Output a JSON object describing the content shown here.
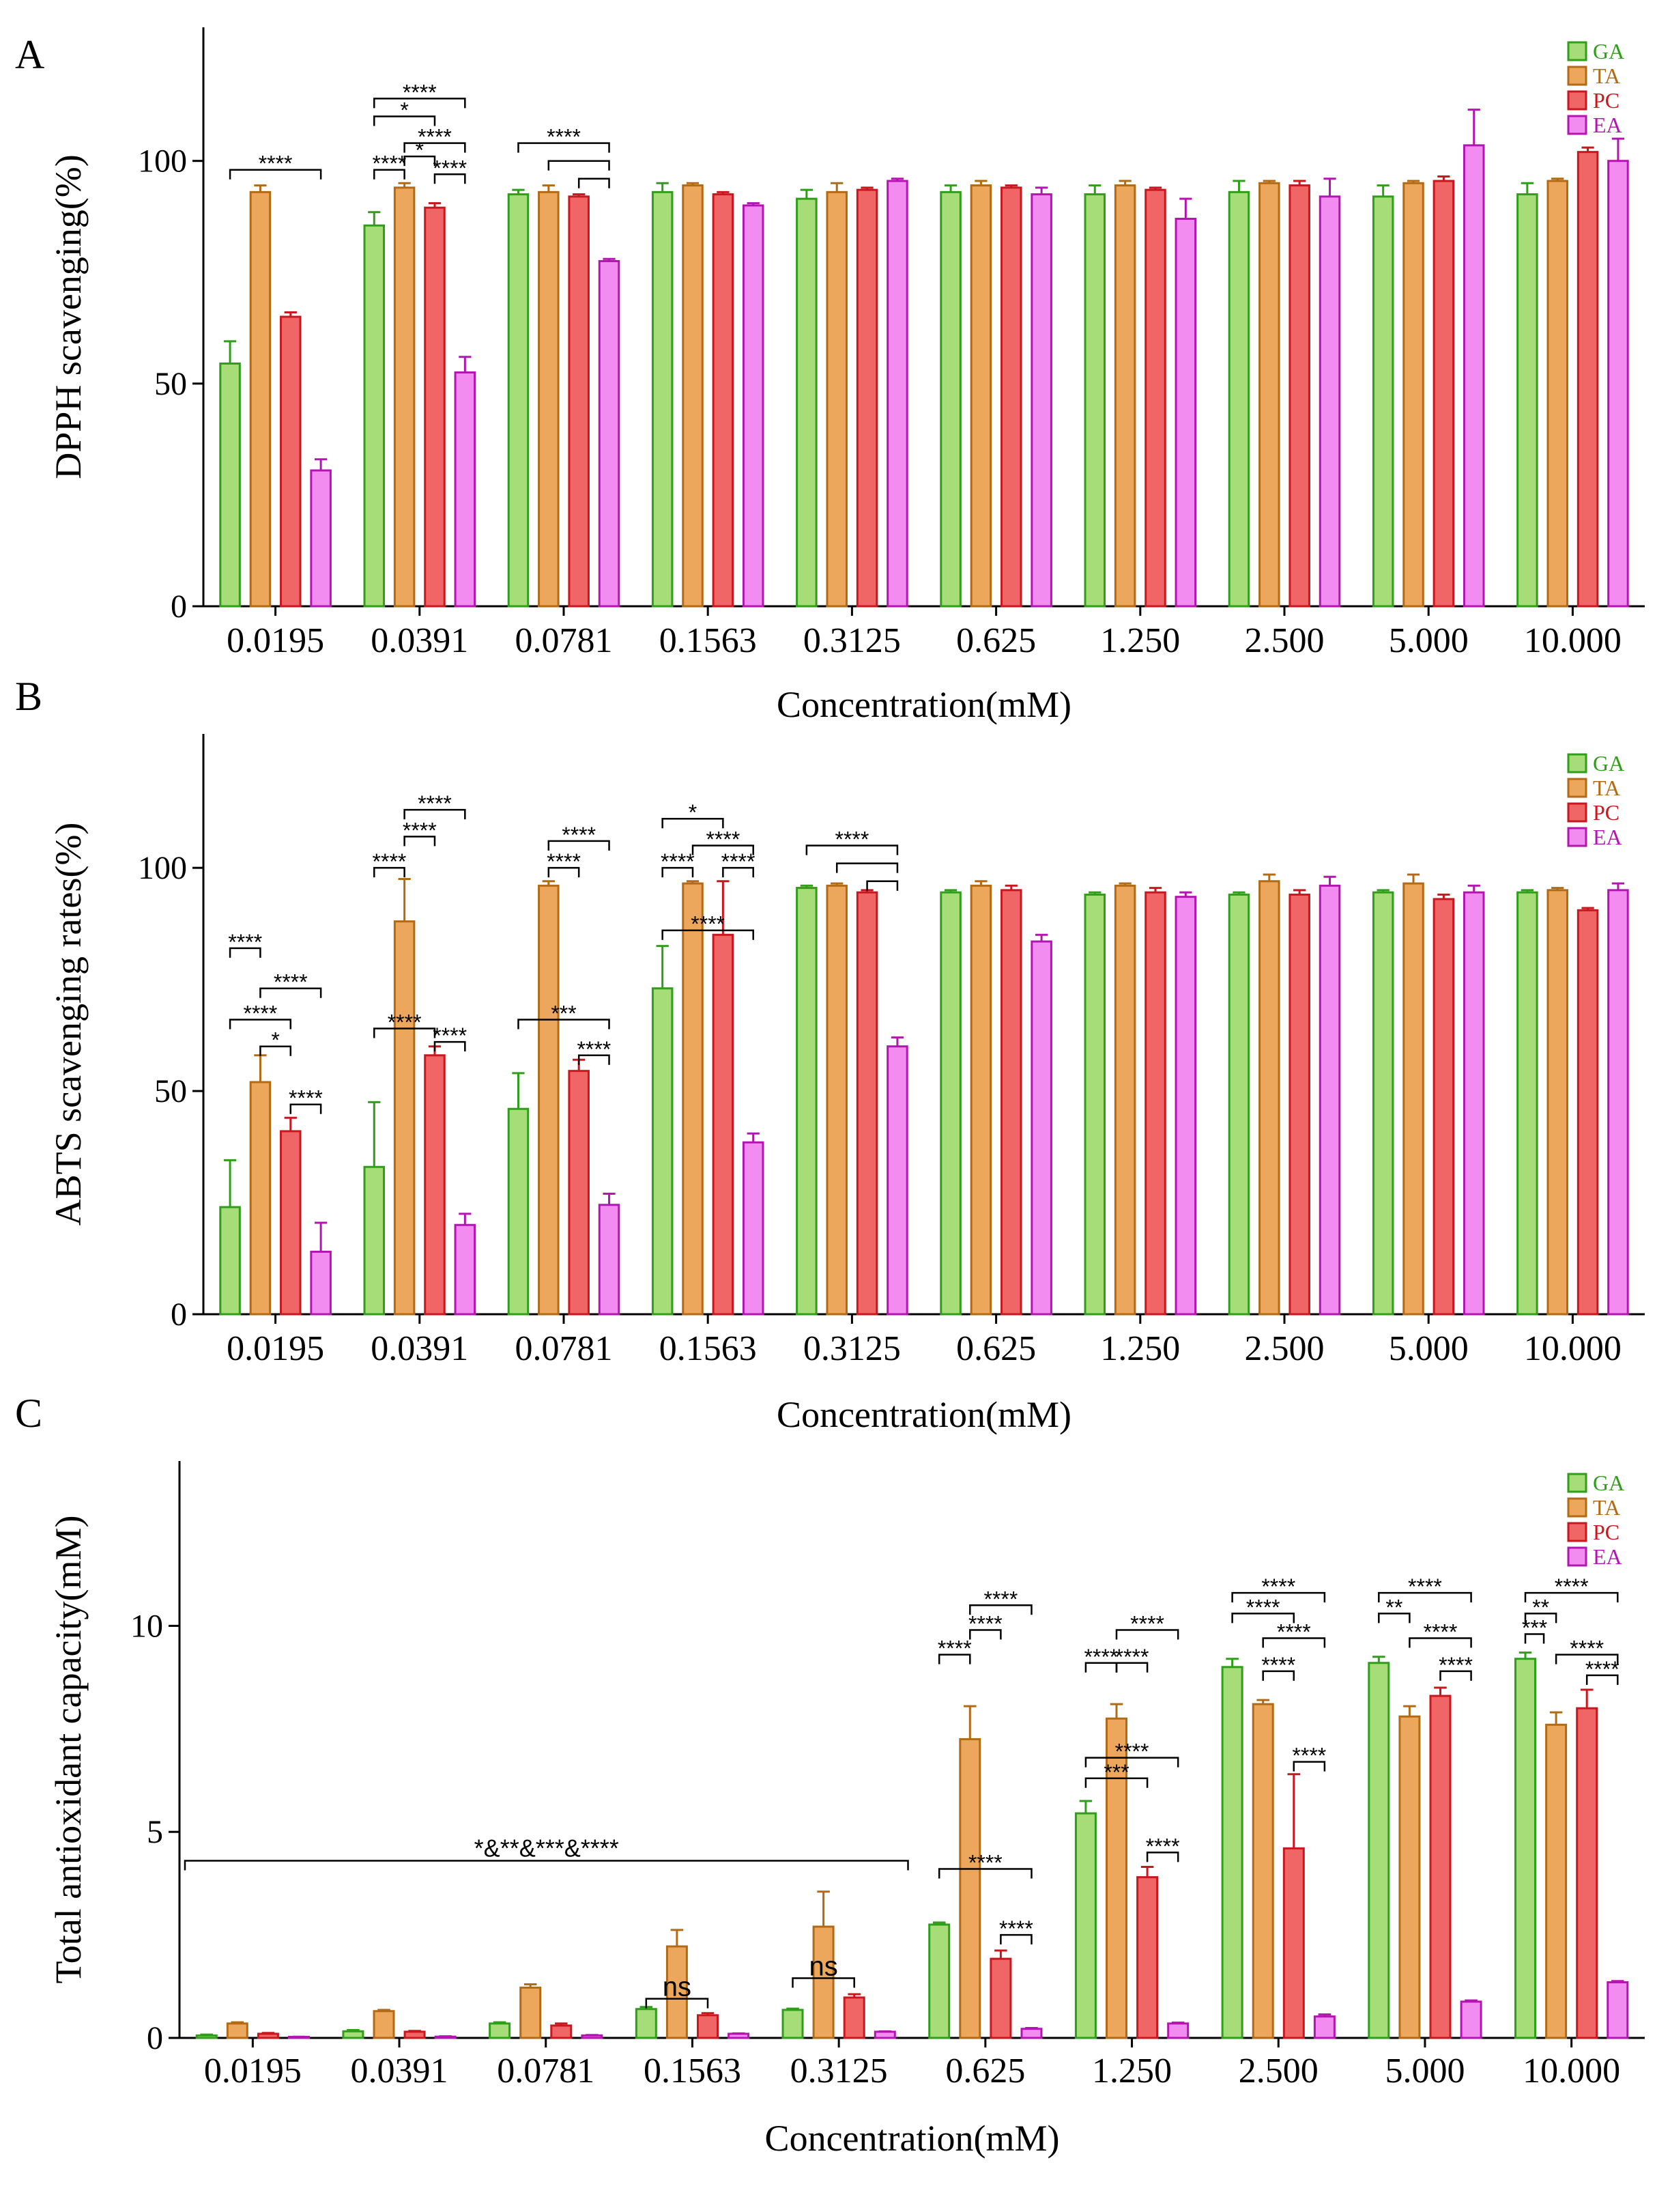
{
  "figure": {
    "colors": {
      "GA": "#a6dd78",
      "TA": "#eca75d",
      "PC": "#f06666",
      "EA": "#f38cf1"
    },
    "edge_colors": {
      "GA": "#2f9e19",
      "TA": "#b26b14",
      "PC": "#c8171e",
      "EA": "#b315b0"
    },
    "series_names": [
      "GA",
      "TA",
      "PC",
      "EA"
    ]
  },
  "chart_data": [
    {
      "panel_label": "A",
      "type": "bar",
      "title": "",
      "xlabel": "Concentration(mM)",
      "ylabel": "DPPH scavenging(%)",
      "ylim": [
        0,
        130
      ],
      "yticks": [
        0,
        50,
        100
      ],
      "categories": [
        "0.0195",
        "0.0391",
        "0.0781",
        "0.1563",
        "0.3125",
        "0.625",
        "1.250",
        "2.500",
        "5.000",
        "10.000"
      ],
      "series": [
        {
          "name": "GA",
          "values": [
            54.5,
            85.5,
            92.5,
            93,
            91.5,
            93,
            92.5,
            93,
            92,
            92.5
          ],
          "errors": [
            5,
            3,
            1,
            2,
            2,
            1.5,
            2,
            2.5,
            2.5,
            2.5
          ]
        },
        {
          "name": "TA",
          "values": [
            93,
            94,
            93,
            94.5,
            93,
            94.5,
            94.5,
            95,
            95,
            95.5
          ],
          "errors": [
            1.5,
            1,
            1.5,
            0.5,
            2,
            1,
            1,
            0.5,
            0.5,
            0.5
          ]
        },
        {
          "name": "PC",
          "values": [
            65,
            89.5,
            92,
            92.5,
            93.5,
            94,
            93.5,
            94.5,
            95.5,
            102
          ],
          "errors": [
            1,
            1,
            0.5,
            0.5,
            0.5,
            0.5,
            0.5,
            1,
            1,
            1
          ]
        },
        {
          "name": "EA",
          "values": [
            30.5,
            52.5,
            77.5,
            90,
            95.5,
            92.5,
            87,
            92,
            103.5,
            100
          ],
          "errors": [
            2.5,
            3.5,
            0.5,
            0.5,
            0.5,
            1.5,
            4.5,
            4,
            8,
            5
          ]
        }
      ],
      "significance": [
        {
          "group": 0,
          "from": 0,
          "to": 3,
          "y": 98,
          "label": "****"
        },
        {
          "group": 1,
          "from": 0,
          "to": 3,
          "y": 114,
          "label": "****"
        },
        {
          "group": 1,
          "from": 0,
          "to": 2,
          "y": 110,
          "label": "*"
        },
        {
          "group": 1,
          "from": 1,
          "to": 3,
          "y": 104,
          "label": "****"
        },
        {
          "group": 1,
          "from": 0,
          "to": 1,
          "y": 98,
          "label": "****"
        },
        {
          "group": 1,
          "from": 1,
          "to": 2,
          "y": 101,
          "label": "*"
        },
        {
          "group": 1,
          "from": 2,
          "to": 3,
          "y": 97,
          "label": "****"
        },
        {
          "group": 2,
          "from": 0,
          "to": 3,
          "y": 104,
          "label": "****"
        },
        {
          "group": 2,
          "from": 1,
          "to": 3,
          "y": 100,
          "label": ""
        },
        {
          "group": 2,
          "from": 2,
          "to": 3,
          "y": 96,
          "label": ""
        }
      ]
    },
    {
      "panel_label": "B",
      "type": "bar",
      "title": "",
      "xlabel": "Concentration(mM)",
      "ylabel": "ABTS scavenging rates(%)",
      "ylim": [
        0,
        130
      ],
      "yticks": [
        0,
        50,
        100
      ],
      "categories": [
        "0.0195",
        "0.0391",
        "0.0781",
        "0.1563",
        "0.3125",
        "0.625",
        "1.250",
        "2.500",
        "5.000",
        "10.000"
      ],
      "series": [
        {
          "name": "GA",
          "values": [
            24,
            33,
            46,
            73,
            95.5,
            94.5,
            94,
            94,
            94.5,
            94.5
          ],
          "errors": [
            10.5,
            14.5,
            8,
            9.5,
            0.5,
            0.5,
            0.5,
            0.5,
            0.5,
            0.5
          ]
        },
        {
          "name": "TA",
          "values": [
            52,
            88,
            96,
            96.5,
            96,
            96,
            96,
            97,
            96.5,
            95
          ],
          "errors": [
            6,
            9.5,
            1,
            0.5,
            0.5,
            1,
            0.5,
            1.5,
            2,
            0.5
          ]
        },
        {
          "name": "PC",
          "values": [
            41,
            58,
            54.5,
            85,
            94.5,
            95,
            94.5,
            94,
            93,
            90.5
          ],
          "errors": [
            3,
            2,
            2.5,
            12,
            0.5,
            1,
            1,
            1,
            1,
            0.5
          ]
        },
        {
          "name": "EA",
          "values": [
            14,
            20,
            24.5,
            38.5,
            60,
            83.5,
            93.5,
            96,
            94.5,
            95
          ],
          "errors": [
            6.5,
            2.5,
            2.5,
            2,
            2,
            1.5,
            1,
            2,
            1.5,
            1.5
          ]
        }
      ],
      "significance": [
        {
          "group": 0,
          "from": 0,
          "to": 1,
          "y": 82,
          "label": "****"
        },
        {
          "group": 0,
          "from": 1,
          "to": 3,
          "y": 73,
          "label": "****"
        },
        {
          "group": 0,
          "from": 0,
          "to": 2,
          "y": 66,
          "label": "****"
        },
        {
          "group": 0,
          "from": 1,
          "to": 2,
          "y": 60,
          "label": "*"
        },
        {
          "group": 0,
          "from": 2,
          "to": 3,
          "y": 47,
          "label": "****"
        },
        {
          "group": 1,
          "from": 0,
          "to": 1,
          "y": 100,
          "label": "****"
        },
        {
          "group": 1,
          "from": 1,
          "to": 3,
          "y": 113,
          "label": "****"
        },
        {
          "group": 1,
          "from": 1,
          "to": 2,
          "y": 107,
          "label": "****"
        },
        {
          "group": 1,
          "from": 0,
          "to": 2,
          "y": 64,
          "label": "****"
        },
        {
          "group": 1,
          "from": 2,
          "to": 3,
          "y": 61,
          "label": "****"
        },
        {
          "group": 2,
          "from": 1,
          "to": 3,
          "y": 106,
          "label": "****"
        },
        {
          "group": 2,
          "from": 1,
          "to": 2,
          "y": 100,
          "label": "****"
        },
        {
          "group": 2,
          "from": 0,
          "to": 3,
          "y": 66,
          "label": "***"
        },
        {
          "group": 2,
          "from": 2,
          "to": 3,
          "y": 58,
          "label": "****"
        },
        {
          "group": 3,
          "from": 0,
          "to": 2,
          "y": 111,
          "label": "*"
        },
        {
          "group": 3,
          "from": 1,
          "to": 3,
          "y": 105,
          "label": "****"
        },
        {
          "group": 3,
          "from": 0,
          "to": 1,
          "y": 100,
          "label": "****"
        },
        {
          "group": 3,
          "from": 2,
          "to": 3,
          "y": 100,
          "label": "****"
        },
        {
          "group": 3,
          "from": 0,
          "to": 3,
          "y": 86,
          "label": "****"
        },
        {
          "group": 4,
          "from": 0,
          "to": 3,
          "y": 105,
          "label": "****"
        },
        {
          "group": 4,
          "from": 1,
          "to": 3,
          "y": 101,
          "label": ""
        },
        {
          "group": 4,
          "from": 2,
          "to": 3,
          "y": 97,
          "label": ""
        }
      ]
    },
    {
      "panel_label": "C",
      "type": "bar",
      "title": "",
      "xlabel": "Concentration(mM)",
      "ylabel": "Total antioxidant capacity(mM)",
      "ylim": [
        0,
        14
      ],
      "yticks": [
        0,
        5,
        10
      ],
      "categories": [
        "0.0195",
        "0.0391",
        "0.0781",
        "0.1563",
        "0.3125",
        "0.625",
        "1.250",
        "2.500",
        "5.000",
        "10.000"
      ],
      "series": [
        {
          "name": "GA",
          "values": [
            0.06,
            0.16,
            0.35,
            0.7,
            0.68,
            2.75,
            5.45,
            9,
            9.1,
            9.2
          ],
          "errors": [
            0.02,
            0.03,
            0.03,
            0.05,
            0.03,
            0.05,
            0.3,
            0.2,
            0.15,
            0.15
          ]
        },
        {
          "name": "TA",
          "values": [
            0.35,
            0.65,
            1.22,
            2.22,
            2.7,
            7.25,
            7.75,
            8.1,
            7.8,
            7.6
          ],
          "errors": [
            0.03,
            0.03,
            0.08,
            0.4,
            0.85,
            0.8,
            0.35,
            0.1,
            0.25,
            0.3
          ]
        },
        {
          "name": "PC",
          "values": [
            0.1,
            0.15,
            0.3,
            0.55,
            0.98,
            1.92,
            3.9,
            4.6,
            8.3,
            8
          ],
          "errors": [
            0.02,
            0.02,
            0.05,
            0.05,
            0.08,
            0.2,
            0.25,
            1.8,
            0.2,
            0.45
          ]
        },
        {
          "name": "EA",
          "values": [
            0.02,
            0.03,
            0.06,
            0.1,
            0.15,
            0.22,
            0.35,
            0.52,
            0.88,
            1.35
          ],
          "errors": [
            0.01,
            0.01,
            0.01,
            0.01,
            0.01,
            0.02,
            0.02,
            0.05,
            0.03,
            0.03
          ]
        }
      ],
      "significance": [
        {
          "group": 5,
          "from": 0,
          "to": 1,
          "y": 9.3,
          "label": "****"
        },
        {
          "group": 5,
          "from": 1,
          "to": 2,
          "y": 9.9,
          "label": "****"
        },
        {
          "group": 5,
          "from": 1,
          "to": 3,
          "y": 10.5,
          "label": "****"
        },
        {
          "group": 5,
          "from": 0,
          "to": 3,
          "y": 4.1,
          "label": "****"
        },
        {
          "group": 5,
          "from": 2,
          "to": 3,
          "y": 2.5,
          "label": "****"
        },
        {
          "group": 6,
          "from": 0,
          "to": 1,
          "y": 9.1,
          "label": "****"
        },
        {
          "group": 6,
          "from": 1,
          "to": 2,
          "y": 9.1,
          "label": "****"
        },
        {
          "group": 6,
          "from": 1,
          "to": 3,
          "y": 9.9,
          "label": "****"
        },
        {
          "group": 6,
          "from": 0,
          "to": 3,
          "y": 6.8,
          "label": "****"
        },
        {
          "group": 6,
          "from": 0,
          "to": 2,
          "y": 6.3,
          "label": "***"
        },
        {
          "group": 6,
          "from": 2,
          "to": 3,
          "y": 4.5,
          "label": "****"
        },
        {
          "group": 7,
          "from": 0,
          "to": 3,
          "y": 10.8,
          "label": "****"
        },
        {
          "group": 7,
          "from": 0,
          "to": 2,
          "y": 10.3,
          "label": "****"
        },
        {
          "group": 7,
          "from": 1,
          "to": 3,
          "y": 9.7,
          "label": "****"
        },
        {
          "group": 7,
          "from": 1,
          "to": 2,
          "y": 8.9,
          "label": "****"
        },
        {
          "group": 7,
          "from": 2,
          "to": 3,
          "y": 6.7,
          "label": "****"
        },
        {
          "group": 8,
          "from": 0,
          "to": 3,
          "y": 10.8,
          "label": "****"
        },
        {
          "group": 8,
          "from": 0,
          "to": 1,
          "y": 10.3,
          "label": "**"
        },
        {
          "group": 8,
          "from": 1,
          "to": 3,
          "y": 9.7,
          "label": "****"
        },
        {
          "group": 8,
          "from": 2,
          "to": 3,
          "y": 8.9,
          "label": "****"
        },
        {
          "group": 9,
          "from": 0,
          "to": 3,
          "y": 10.8,
          "label": "****"
        },
        {
          "group": 9,
          "from": 0,
          "to": 1,
          "y": 10.3,
          "label": "**"
        },
        {
          "group": 9,
          "from": 0,
          "to": 0.6,
          "y": 9.8,
          "label": "***"
        },
        {
          "group": 9,
          "from": 1,
          "to": 3,
          "y": 9.3,
          "label": "****"
        },
        {
          "group": 9,
          "from": 2,
          "to": 3,
          "y": 8.8,
          "label": "****"
        },
        {
          "group": 3,
          "from": 0,
          "to": 2,
          "y": 0.95,
          "label": "ns"
        },
        {
          "group": 4,
          "from": 0,
          "to": 2,
          "y": 1.45,
          "label": "ns"
        }
      ],
      "span_annotation": {
        "from_group": 0,
        "to_group": 4,
        "y": 4.3,
        "label": "*&**&***&****"
      }
    }
  ]
}
